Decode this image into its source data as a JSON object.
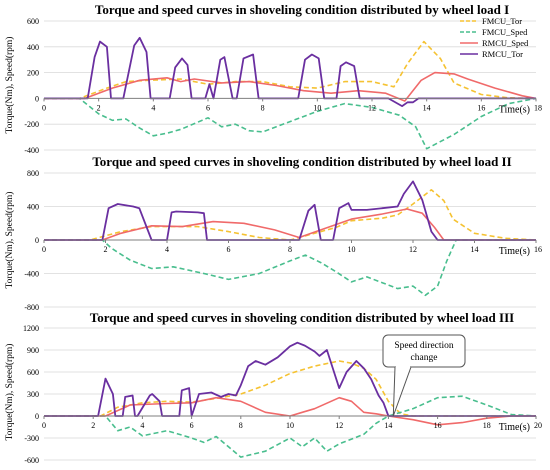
{
  "colors": {
    "fmcu_tor": "#f5c232",
    "fmcu_sped": "#49be8e",
    "rmcu_sped": "#f06a6a",
    "rmcu_tor": "#6a2fa0",
    "grid": "#d9d9d9",
    "axis": "#7f7f7f"
  },
  "chart_data": [
    {
      "type": "line",
      "title": "Torque and speed curves in shoveling condition distributed by wheel load I",
      "ylabel": "Torque(Nm), Speed(rpm)",
      "xlabel": "Time(s)",
      "xlim": [
        0,
        18
      ],
      "ylim": [
        -400,
        600
      ],
      "xticks": [
        0,
        2,
        4,
        6,
        8,
        10,
        12,
        14,
        16,
        18
      ],
      "yticks": [
        -400,
        -200,
        0,
        200,
        400,
        600
      ],
      "grid": true,
      "legend": {
        "placement": "top-right",
        "entries": [
          "FMCU_Tor",
          "FMCU_Sped",
          "RMCU_Sped",
          "RMCU_Tor"
        ]
      },
      "series": [
        {
          "name": "FMCU_Tor",
          "style": "dashed",
          "color": "#f5c232",
          "x": [
            0,
            1.3,
            2.3,
            3,
            3.8,
            5,
            6,
            7,
            8,
            9,
            10,
            11,
            12,
            12.8,
            13.3,
            13.9,
            14.5,
            15,
            16,
            17,
            18
          ],
          "y": [
            0,
            0,
            80,
            130,
            140,
            150,
            110,
            130,
            130,
            90,
            80,
            130,
            130,
            90,
            270,
            440,
            310,
            120,
            30,
            5,
            0
          ]
        },
        {
          "name": "FMCU_Sped",
          "style": "dashed",
          "color": "#49be8e",
          "x": [
            0,
            1.3,
            2,
            2.5,
            3,
            3.5,
            4,
            4.5,
            5,
            6,
            6.5,
            7,
            7.5,
            8,
            9,
            10,
            11,
            12,
            13,
            13.6,
            14,
            15,
            16,
            17,
            18
          ],
          "y": [
            0,
            0,
            -120,
            -170,
            -160,
            -230,
            -290,
            -270,
            -240,
            -150,
            -220,
            -200,
            -250,
            -260,
            -180,
            -100,
            -40,
            -70,
            -130,
            -220,
            -390,
            -280,
            -140,
            -40,
            0
          ]
        },
        {
          "name": "RMCU_Sped",
          "style": "solid",
          "color": "#f06a6a",
          "x": [
            0,
            1.5,
            2.5,
            3.5,
            4.5,
            5,
            5.5,
            6.5,
            7.5,
            8.5,
            9.5,
            10.5,
            11.5,
            12.5,
            13.2,
            13.8,
            14.3,
            15,
            15.5,
            16.5,
            17.5,
            18
          ],
          "y": [
            0,
            0,
            80,
            140,
            160,
            130,
            150,
            120,
            130,
            100,
            60,
            40,
            60,
            40,
            -20,
            140,
            200,
            190,
            150,
            80,
            20,
            0
          ]
        },
        {
          "name": "RMCU_Tor",
          "style": "solid",
          "color": "#6a2fa0",
          "x": [
            0,
            1.6,
            1.85,
            2.05,
            2.3,
            2.45,
            2.9,
            3.3,
            3.5,
            3.75,
            3.9,
            4.6,
            4.8,
            5.05,
            5.25,
            5.4,
            5.9,
            6.05,
            6.2,
            6.45,
            6.6,
            6.9,
            7.05,
            7.3,
            7.65,
            7.85,
            9.3,
            9.55,
            9.8,
            10.05,
            10.25,
            10.7,
            10.85,
            11.05,
            11.35,
            11.55,
            12.6,
            13.1,
            13.3,
            13.5,
            13.7,
            18
          ],
          "y": [
            0,
            0,
            320,
            440,
            400,
            0,
            0,
            410,
            470,
            360,
            0,
            0,
            240,
            310,
            260,
            0,
            0,
            110,
            0,
            300,
            320,
            0,
            0,
            310,
            340,
            0,
            0,
            300,
            340,
            310,
            0,
            0,
            250,
            280,
            250,
            0,
            0,
            -60,
            -30,
            -30,
            0,
            0
          ]
        }
      ]
    },
    {
      "type": "line",
      "title": "Torque and speed curves in shoveling condition distributed by wheel load II",
      "ylabel": "Torque(Nm), Speed(rpm)",
      "xlabel": "Time(s)",
      "xlim": [
        0,
        16
      ],
      "ylim": [
        -800,
        800
      ],
      "xticks": [
        0,
        2,
        4,
        6,
        8,
        10,
        12,
        14,
        16
      ],
      "yticks": [
        -800,
        -400,
        0,
        400,
        800
      ],
      "grid": true,
      "series": [
        {
          "name": "FMCU_Tor",
          "style": "dashed",
          "color": "#f5c232",
          "x": [
            0,
            1.5,
            2.5,
            3.5,
            5,
            6,
            7,
            8,
            8.5,
            9,
            9.5,
            10,
            11,
            11.5,
            12,
            12.6,
            13,
            13.3,
            14,
            15,
            16
          ],
          "y": [
            0,
            0,
            100,
            160,
            160,
            100,
            30,
            0,
            50,
            100,
            150,
            230,
            260,
            300,
            430,
            600,
            470,
            250,
            80,
            20,
            0
          ]
        },
        {
          "name": "FMCU_Sped",
          "style": "dashed",
          "color": "#49be8e",
          "x": [
            0,
            1.9,
            2.2,
            2.8,
            3.5,
            4.2,
            5.2,
            6,
            7,
            8,
            8.5,
            9,
            9.5,
            10,
            10.5,
            11,
            11.5,
            12,
            12.4,
            12.8,
            13.1,
            13.4,
            14,
            16
          ],
          "y": [
            0,
            0,
            -100,
            -240,
            -340,
            -320,
            -400,
            -470,
            -400,
            -250,
            -180,
            -270,
            -380,
            -500,
            -440,
            -510,
            -580,
            -550,
            -660,
            -550,
            -250,
            0,
            0,
            0
          ]
        },
        {
          "name": "RMCU_Sped",
          "style": "solid",
          "color": "#f06a6a",
          "x": [
            0,
            1.9,
            2.5,
            3.5,
            4.5,
            5.5,
            6.5,
            7.5,
            8.3,
            9,
            10,
            11,
            11.8,
            12.3,
            12.7,
            13,
            16
          ],
          "y": [
            0,
            0,
            80,
            170,
            160,
            220,
            200,
            120,
            30,
            120,
            250,
            310,
            370,
            320,
            150,
            0,
            0
          ]
        },
        {
          "name": "RMCU_Tor",
          "style": "solid",
          "color": "#6a2fa0",
          "x": [
            0,
            1.9,
            2.1,
            2.4,
            2.9,
            3.1,
            3.5,
            4,
            4.15,
            4.3,
            5,
            5.2,
            5.3,
            8.3,
            8.6,
            8.8,
            9,
            9.4,
            9.6,
            9.9,
            10,
            10.5,
            11,
            11.5,
            11.7,
            12,
            12.3,
            12.6,
            12.8,
            16
          ],
          "y": [
            0,
            0,
            380,
            430,
            400,
            380,
            0,
            0,
            330,
            340,
            330,
            320,
            0,
            0,
            350,
            420,
            0,
            0,
            380,
            440,
            360,
            360,
            380,
            400,
            550,
            700,
            480,
            100,
            0,
            0
          ]
        }
      ]
    },
    {
      "type": "line",
      "title": "Torque and speed curves in shoveling condition distributed by wheel load III",
      "ylabel": "Torque(Nm), Speed(rpm)",
      "xlabel": "Time(s)",
      "xlim": [
        0,
        20
      ],
      "ylim": [
        -600,
        1200
      ],
      "xticks": [
        0,
        2,
        4,
        6,
        8,
        10,
        12,
        14,
        16,
        18,
        20
      ],
      "yticks": [
        -600,
        -300,
        0,
        300,
        600,
        900,
        1200
      ],
      "grid": true,
      "annotation": {
        "text": [
          "Speed direction",
          "change"
        ],
        "x": 14.2,
        "y": 0
      },
      "series": [
        {
          "name": "FMCU_Tor",
          "style": "dashed",
          "color": "#f5c232",
          "x": [
            0,
            2.3,
            3,
            4,
            5,
            6,
            7,
            8,
            9,
            10,
            11,
            12,
            12.5,
            13,
            13.5,
            14,
            14.5,
            15,
            20
          ],
          "y": [
            0,
            0,
            120,
            180,
            200,
            190,
            240,
            300,
            420,
            580,
            680,
            750,
            720,
            650,
            500,
            200,
            30,
            0,
            0
          ]
        },
        {
          "name": "FMCU_Sped",
          "style": "dashed",
          "color": "#49be8e",
          "x": [
            0,
            2.5,
            3,
            3.5,
            4,
            5,
            6,
            6.5,
            7,
            7.5,
            8,
            9,
            10,
            10.5,
            11,
            11.5,
            12,
            13,
            13.5,
            14,
            15,
            16,
            17,
            18,
            19,
            20
          ],
          "y": [
            0,
            0,
            -200,
            -150,
            -270,
            -200,
            -300,
            -360,
            -280,
            -420,
            -560,
            -480,
            -300,
            -420,
            -300,
            -480,
            -380,
            -250,
            -100,
            0,
            100,
            250,
            270,
            150,
            20,
            0
          ]
        },
        {
          "name": "RMCU_Sped",
          "style": "solid",
          "color": "#f06a6a",
          "x": [
            0,
            2.5,
            3.5,
            5,
            6,
            7,
            8,
            9,
            10,
            10.5,
            11,
            12,
            12.5,
            13,
            13.5,
            14,
            15,
            16,
            17,
            18,
            19,
            20
          ],
          "y": [
            0,
            0,
            150,
            170,
            180,
            250,
            200,
            50,
            0,
            50,
            100,
            250,
            200,
            50,
            30,
            0,
            -50,
            -120,
            -90,
            -30,
            0,
            0
          ]
        },
        {
          "name": "RMCU_Tor",
          "style": "solid",
          "color": "#6a2fa0",
          "x": [
            0,
            2.2,
            2.5,
            2.8,
            2.9,
            3.2,
            3.3,
            3.6,
            3.7,
            3.8,
            4.3,
            4.4,
            4.7,
            4.8,
            5.5,
            5.6,
            5.9,
            6,
            6.3,
            6.8,
            7.2,
            7.5,
            7.8,
            8,
            8.3,
            8.6,
            9,
            9.5,
            10,
            10.3,
            10.6,
            11,
            11.2,
            11.5,
            12,
            12.3,
            12.7,
            13,
            13.3,
            13.6,
            13.8,
            14,
            20
          ],
          "y": [
            0,
            0,
            510,
            300,
            0,
            0,
            260,
            280,
            0,
            0,
            280,
            300,
            200,
            0,
            0,
            350,
            380,
            0,
            300,
            320,
            260,
            300,
            280,
            420,
            680,
            750,
            700,
            800,
            950,
            1000,
            960,
            880,
            820,
            900,
            380,
            600,
            750,
            650,
            500,
            280,
            180,
            0,
            0
          ]
        }
      ]
    }
  ]
}
